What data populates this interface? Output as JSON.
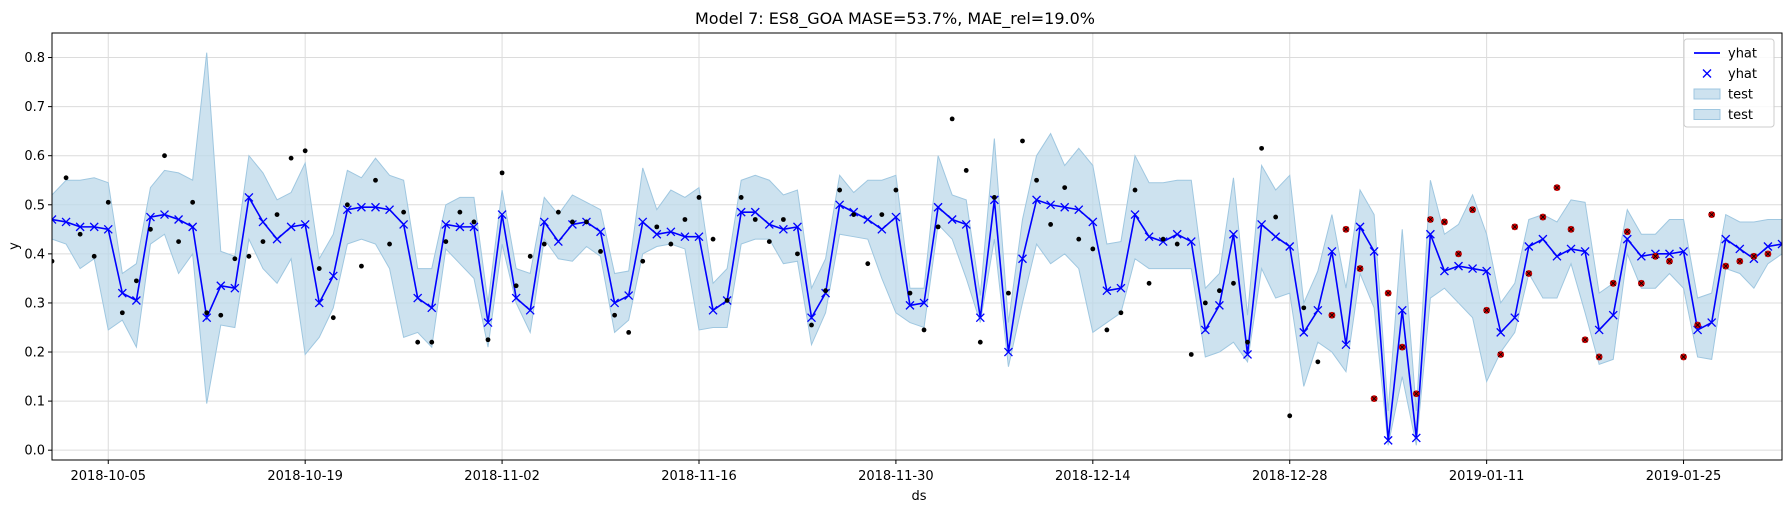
{
  "chart_data": {
    "type": "line",
    "title": "Model 7: ES8_GOA MASE=53.7%, MAE_rel=19.0%",
    "xlabel": "ds",
    "ylabel": "y",
    "xlim": [
      "2018-10-01",
      "2019-02-01"
    ],
    "ylim": [
      -0.02,
      0.85
    ],
    "yticks": [
      0.0,
      0.1,
      0.2,
      0.3,
      0.4,
      0.5,
      0.6,
      0.7,
      0.8
    ],
    "yticklabels": [
      "0.0",
      "0.1",
      "0.2",
      "0.3",
      "0.4",
      "0.5",
      "0.6",
      "0.7",
      "0.8"
    ],
    "xticks": [
      "2018-10-05",
      "2018-10-19",
      "2018-11-02",
      "2018-11-16",
      "2018-11-30",
      "2018-12-14",
      "2018-12-28",
      "2019-01-11",
      "2019-01-25"
    ],
    "xticklabels": [
      "2018-10-05",
      "2018-10-19",
      "2018-11-02",
      "2018-11-16",
      "2018-11-30",
      "2018-12-14",
      "2018-12-28",
      "2019-01-11",
      "2019-01-25"
    ],
    "grid": true,
    "legend_position": "top-right",
    "legend": [
      "yhat",
      "yhat",
      "test",
      "test"
    ],
    "colors": {
      "yhat_line": "#0000ff",
      "yhat_marker": "#0000ff",
      "band_fill": "#bcd8ea",
      "band_edge": "#9fc7e0",
      "train_points": "#000000",
      "test_points": "#cc0000",
      "grid": "#dcdcdc"
    },
    "series": [
      {
        "name": "yhat",
        "x": [
          "2018-10-01",
          "2018-10-02",
          "2018-10-03",
          "2018-10-04",
          "2018-10-05",
          "2018-10-06",
          "2018-10-07",
          "2018-10-08",
          "2018-10-09",
          "2018-10-10",
          "2018-10-11",
          "2018-10-12",
          "2018-10-13",
          "2018-10-14",
          "2018-10-15",
          "2018-10-16",
          "2018-10-17",
          "2018-10-18",
          "2018-10-19",
          "2018-10-20",
          "2018-10-21",
          "2018-10-22",
          "2018-10-23",
          "2018-10-24",
          "2018-10-25",
          "2018-10-26",
          "2018-10-27",
          "2018-10-28",
          "2018-10-29",
          "2018-10-30",
          "2018-10-31",
          "2018-11-01",
          "2018-11-02",
          "2018-11-03",
          "2018-11-04",
          "2018-11-05",
          "2018-11-06",
          "2018-11-07",
          "2018-11-08",
          "2018-11-09",
          "2018-11-10",
          "2018-11-11",
          "2018-11-12",
          "2018-11-13",
          "2018-11-14",
          "2018-11-15",
          "2018-11-16",
          "2018-11-17",
          "2018-11-18",
          "2018-11-19",
          "2018-11-20",
          "2018-11-21",
          "2018-11-22",
          "2018-11-23",
          "2018-11-24",
          "2018-11-25",
          "2018-11-26",
          "2018-11-27",
          "2018-11-28",
          "2018-11-29",
          "2018-11-30",
          "2018-12-01",
          "2018-12-02",
          "2018-12-03",
          "2018-12-04",
          "2018-12-05",
          "2018-12-06",
          "2018-12-07",
          "2018-12-08",
          "2018-12-09",
          "2018-12-10",
          "2018-12-11",
          "2018-12-12",
          "2018-12-13",
          "2018-12-14",
          "2018-12-15",
          "2018-12-16",
          "2018-12-17",
          "2018-12-18",
          "2018-12-19",
          "2018-12-20",
          "2018-12-21",
          "2018-12-22",
          "2018-12-23",
          "2018-12-24",
          "2018-12-25",
          "2018-12-26",
          "2018-12-27",
          "2018-12-28",
          "2018-12-29",
          "2018-12-30",
          "2018-12-31",
          "2019-01-01",
          "2019-01-02",
          "2019-01-03",
          "2019-01-04",
          "2019-01-05",
          "2019-01-06",
          "2019-01-07",
          "2019-01-08",
          "2019-01-09",
          "2019-01-10",
          "2019-01-11",
          "2019-01-12",
          "2019-01-13",
          "2019-01-14",
          "2019-01-15",
          "2019-01-16",
          "2019-01-17",
          "2019-01-18",
          "2019-01-19",
          "2019-01-20",
          "2019-01-21",
          "2019-01-22",
          "2019-01-23",
          "2019-01-24",
          "2019-01-25",
          "2019-01-26",
          "2019-01-27",
          "2019-01-28",
          "2019-01-29",
          "2019-01-30",
          "2019-01-31",
          "2019-02-01"
        ],
        "y": [
          0.47,
          0.465,
          0.455,
          0.455,
          0.45,
          0.32,
          0.305,
          0.475,
          0.48,
          0.47,
          0.455,
          0.27,
          0.335,
          0.33,
          0.515,
          0.465,
          0.43,
          0.455,
          0.46,
          0.3,
          0.355,
          0.49,
          0.495,
          0.495,
          0.49,
          0.46,
          0.31,
          0.29,
          0.46,
          0.455,
          0.455,
          0.26,
          0.48,
          0.31,
          0.285,
          0.465,
          0.425,
          0.46,
          0.465,
          0.445,
          0.3,
          0.315,
          0.465,
          0.44,
          0.445,
          0.435,
          0.435,
          0.285,
          0.305,
          0.485,
          0.485,
          0.46,
          0.45,
          0.455,
          0.27,
          0.32,
          0.5,
          0.485,
          0.47,
          0.45,
          0.475,
          0.295,
          0.3,
          0.495,
          0.47,
          0.46,
          0.27,
          0.51,
          0.2,
          0.39,
          0.51,
          0.5,
          0.495,
          0.49,
          0.465,
          0.325,
          0.33,
          0.48,
          0.435,
          0.425,
          0.44,
          0.425,
          0.245,
          0.295,
          0.44,
          0.195,
          0.46,
          0.435,
          0.415,
          0.24,
          0.285,
          0.405,
          0.215,
          0.455,
          0.405,
          0.02,
          0.285,
          0.025,
          0.44,
          0.365,
          0.375,
          0.37,
          0.365,
          0.24,
          0.27,
          0.415,
          0.43,
          0.395,
          0.41,
          0.405,
          0.245,
          0.275,
          0.43,
          0.395,
          0.4,
          0.4,
          0.405,
          0.245,
          0.26,
          0.43,
          0.41,
          0.39,
          0.415,
          0.42
        ]
      }
    ],
    "band": {
      "name": "test",
      "lower": [
        0.43,
        0.42,
        0.37,
        0.39,
        0.245,
        0.265,
        0.21,
        0.42,
        0.44,
        0.36,
        0.4,
        0.095,
        0.255,
        0.25,
        0.43,
        0.37,
        0.34,
        0.39,
        0.195,
        0.23,
        0.29,
        0.42,
        0.43,
        0.42,
        0.37,
        0.23,
        0.24,
        0.21,
        0.41,
        0.38,
        0.35,
        0.21,
        0.42,
        0.3,
        0.24,
        0.43,
        0.39,
        0.385,
        0.415,
        0.395,
        0.24,
        0.265,
        0.4,
        0.415,
        0.42,
        0.41,
        0.245,
        0.25,
        0.25,
        0.42,
        0.43,
        0.43,
        0.38,
        0.385,
        0.215,
        0.28,
        0.44,
        0.435,
        0.43,
        0.35,
        0.28,
        0.26,
        0.25,
        0.46,
        0.43,
        0.35,
        0.26,
        0.43,
        0.17,
        0.3,
        0.42,
        0.38,
        0.4,
        0.37,
        0.24,
        0.26,
        0.28,
        0.39,
        0.37,
        0.37,
        0.37,
        0.37,
        0.19,
        0.2,
        0.22,
        0.18,
        0.37,
        0.31,
        0.32,
        0.13,
        0.22,
        0.2,
        0.16,
        0.36,
        0.29,
        0.01,
        0.15,
        0.01,
        0.31,
        0.33,
        0.3,
        0.27,
        0.14,
        0.2,
        0.24,
        0.36,
        0.31,
        0.31,
        0.38,
        0.28,
        0.175,
        0.185,
        0.4,
        0.33,
        0.33,
        0.36,
        0.33,
        0.19,
        0.185,
        0.37,
        0.36,
        0.33,
        0.38,
        0.4
      ],
      "upper": [
        0.52,
        0.55,
        0.55,
        0.555,
        0.545,
        0.36,
        0.38,
        0.535,
        0.57,
        0.565,
        0.55,
        0.81,
        0.405,
        0.395,
        0.6,
        0.565,
        0.51,
        0.525,
        0.585,
        0.39,
        0.44,
        0.57,
        0.555,
        0.595,
        0.56,
        0.55,
        0.37,
        0.37,
        0.5,
        0.515,
        0.515,
        0.3,
        0.53,
        0.37,
        0.36,
        0.515,
        0.48,
        0.52,
        0.505,
        0.49,
        0.36,
        0.365,
        0.575,
        0.49,
        0.53,
        0.515,
        0.535,
        0.34,
        0.37,
        0.55,
        0.56,
        0.55,
        0.52,
        0.53,
        0.33,
        0.39,
        0.56,
        0.525,
        0.55,
        0.55,
        0.56,
        0.33,
        0.33,
        0.6,
        0.52,
        0.51,
        0.315,
        0.635,
        0.26,
        0.47,
        0.6,
        0.645,
        0.58,
        0.615,
        0.58,
        0.42,
        0.425,
        0.6,
        0.545,
        0.545,
        0.55,
        0.55,
        0.33,
        0.36,
        0.555,
        0.275,
        0.58,
        0.53,
        0.56,
        0.3,
        0.365,
        0.48,
        0.33,
        0.53,
        0.48,
        0.08,
        0.45,
        0.08,
        0.55,
        0.44,
        0.46,
        0.52,
        0.44,
        0.3,
        0.34,
        0.47,
        0.48,
        0.465,
        0.51,
        0.505,
        0.32,
        0.34,
        0.49,
        0.44,
        0.44,
        0.47,
        0.47,
        0.31,
        0.32,
        0.48,
        0.465,
        0.465,
        0.47,
        0.47
      ]
    },
    "observed": {
      "x": [
        "2018-10-01",
        "2018-10-02",
        "2018-10-03",
        "2018-10-04",
        "2018-10-05",
        "2018-10-06",
        "2018-10-07",
        "2018-10-08",
        "2018-10-09",
        "2018-10-10",
        "2018-10-11",
        "2018-10-12",
        "2018-10-13",
        "2018-10-14",
        "2018-10-15",
        "2018-10-16",
        "2018-10-17",
        "2018-10-18",
        "2018-10-19",
        "2018-10-20",
        "2018-10-21",
        "2018-10-22",
        "2018-10-23",
        "2018-10-24",
        "2018-10-25",
        "2018-10-26",
        "2018-10-27",
        "2018-10-28",
        "2018-10-29",
        "2018-10-30",
        "2018-10-31",
        "2018-11-01",
        "2018-11-02",
        "2018-11-03",
        "2018-11-04",
        "2018-11-05",
        "2018-11-06",
        "2018-11-07",
        "2018-11-08",
        "2018-11-09",
        "2018-11-10",
        "2018-11-11",
        "2018-11-12",
        "2018-11-13",
        "2018-11-14",
        "2018-11-15",
        "2018-11-16",
        "2018-11-17",
        "2018-11-18",
        "2018-11-19",
        "2018-11-20",
        "2018-11-21",
        "2018-11-22",
        "2018-11-23",
        "2018-11-24",
        "2018-11-25",
        "2018-11-26",
        "2018-11-27",
        "2018-11-28",
        "2018-11-29",
        "2018-11-30",
        "2018-12-01",
        "2018-12-02",
        "2018-12-03",
        "2018-12-04",
        "2018-12-05",
        "2018-12-06",
        "2018-12-07",
        "2018-12-08",
        "2018-12-09",
        "2018-12-10",
        "2018-12-11",
        "2018-12-12",
        "2018-12-13",
        "2018-12-14",
        "2018-12-15",
        "2018-12-16",
        "2018-12-17",
        "2018-12-18",
        "2018-12-19",
        "2018-12-20",
        "2018-12-21",
        "2018-12-22",
        "2018-12-23",
        "2018-12-24",
        "2018-12-25",
        "2018-12-26",
        "2018-12-27",
        "2018-12-28",
        "2018-12-29",
        "2018-12-30"
      ],
      "y": [
        0.385,
        0.555,
        0.44,
        0.395,
        0.505,
        0.28,
        0.345,
        0.45,
        0.6,
        0.425,
        0.505,
        0.28,
        0.275,
        0.39,
        0.395,
        0.425,
        0.48,
        0.595,
        0.61,
        0.37,
        0.27,
        0.5,
        0.375,
        0.55,
        0.42,
        0.485,
        0.22,
        0.22,
        0.425,
        0.485,
        0.465,
        0.225,
        0.565,
        0.335,
        0.395,
        0.42,
        0.485,
        0.465,
        0.465,
        0.405,
        0.275,
        0.24,
        0.385,
        0.455,
        0.42,
        0.47,
        0.515,
        0.43,
        0.305,
        0.515,
        0.47,
        0.425,
        0.47,
        0.4,
        0.255,
        0.325,
        0.53,
        0.48,
        0.38,
        0.48,
        0.53,
        0.32,
        0.245,
        0.455,
        0.675,
        0.57,
        0.22,
        0.515,
        0.32,
        0.63,
        0.55,
        0.46,
        0.535,
        0.43,
        0.41,
        0.245,
        0.28,
        0.53,
        0.34,
        0.43,
        0.42,
        0.195,
        0.3,
        0.325,
        0.34,
        0.22,
        0.615,
        0.475,
        0.07,
        0.29,
        0.18
      ]
    },
    "test_points": {
      "x": [
        "2018-12-31",
        "2019-01-01",
        "2019-01-02",
        "2019-01-03",
        "2019-01-04",
        "2019-01-05",
        "2019-01-06",
        "2019-01-07",
        "2019-01-08",
        "2019-01-09",
        "2019-01-10",
        "2019-01-11",
        "2019-01-12",
        "2019-01-13",
        "2019-01-14",
        "2019-01-15",
        "2019-01-16",
        "2019-01-17",
        "2019-01-18",
        "2019-01-19",
        "2019-01-20",
        "2019-01-21",
        "2019-01-22",
        "2019-01-23",
        "2019-01-24",
        "2019-01-25",
        "2019-01-26",
        "2019-01-27",
        "2019-01-28",
        "2019-01-29",
        "2019-01-30",
        "2019-01-31"
      ],
      "y": [
        0.275,
        0.45,
        0.37,
        0.105,
        0.32,
        0.21,
        0.115,
        0.47,
        0.465,
        0.4,
        0.49,
        0.285,
        0.195,
        0.455,
        0.36,
        0.475,
        0.535,
        0.45,
        0.225,
        0.19,
        0.34,
        0.445,
        0.34,
        0.395,
        0.385,
        0.19,
        0.255,
        0.48,
        0.375,
        0.385,
        0.395,
        0.4
      ]
    }
  }
}
